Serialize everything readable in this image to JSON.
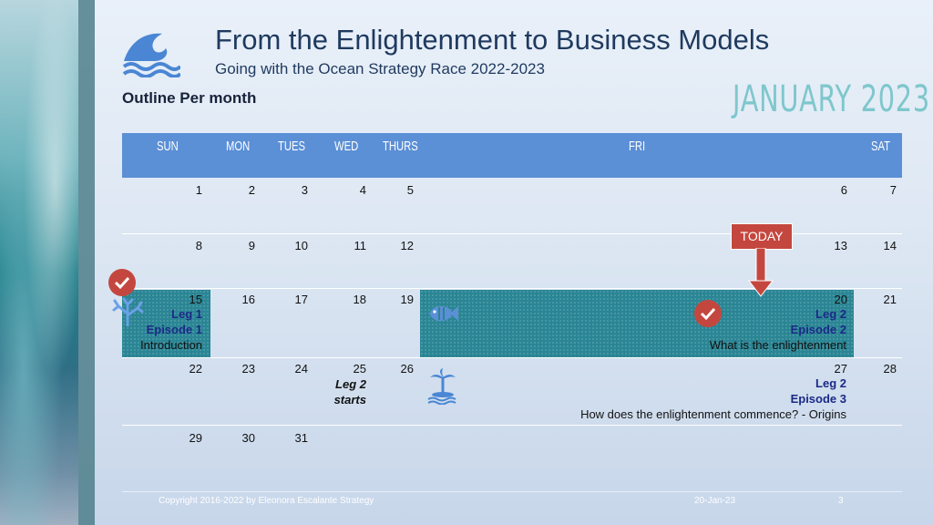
{
  "header": {
    "title": "From the Enlightenment to Business Models",
    "subtitle": "Going with the Ocean Strategy Race 2022-2023",
    "outline": "Outline Per month",
    "month": "JANUARY 2023"
  },
  "calendar": {
    "weekdays": [
      "SUN",
      "MON",
      "TUES",
      "WED",
      "THURS",
      "FRI",
      "SAT"
    ],
    "dates": [
      "1",
      "2",
      "3",
      "4",
      "5",
      "6",
      "7",
      "8",
      "9",
      "10",
      "11",
      "12",
      "13",
      "14",
      "15",
      "16",
      "17",
      "18",
      "19",
      "20",
      "21",
      "22",
      "23",
      "24",
      "25",
      "26",
      "27",
      "28",
      "29",
      "30",
      "31"
    ]
  },
  "events": {
    "e15": {
      "leg": "Leg 1",
      "episode": "Episode 1",
      "topic": "Introduction"
    },
    "e20": {
      "leg": "Leg 2",
      "episode": "Episode 2",
      "topic": "What is the enlightenment"
    },
    "e25": {
      "text1": "Leg 2",
      "text2": "starts"
    },
    "e27": {
      "leg": "Leg 2",
      "episode": "Episode 3",
      "topic": "How does the enlightenment commence? - Origins"
    }
  },
  "today_label": "TODAY",
  "footer": {
    "copyright": "Copyright 2016-2022 by Eleonora Escalante Strategy",
    "date": "20-Jan-23",
    "page": "3"
  },
  "colors": {
    "header_bar": "#5b8fd6",
    "teal": "#2a8594",
    "today": "#c4473f",
    "icon_blue": "#4a86d4"
  }
}
